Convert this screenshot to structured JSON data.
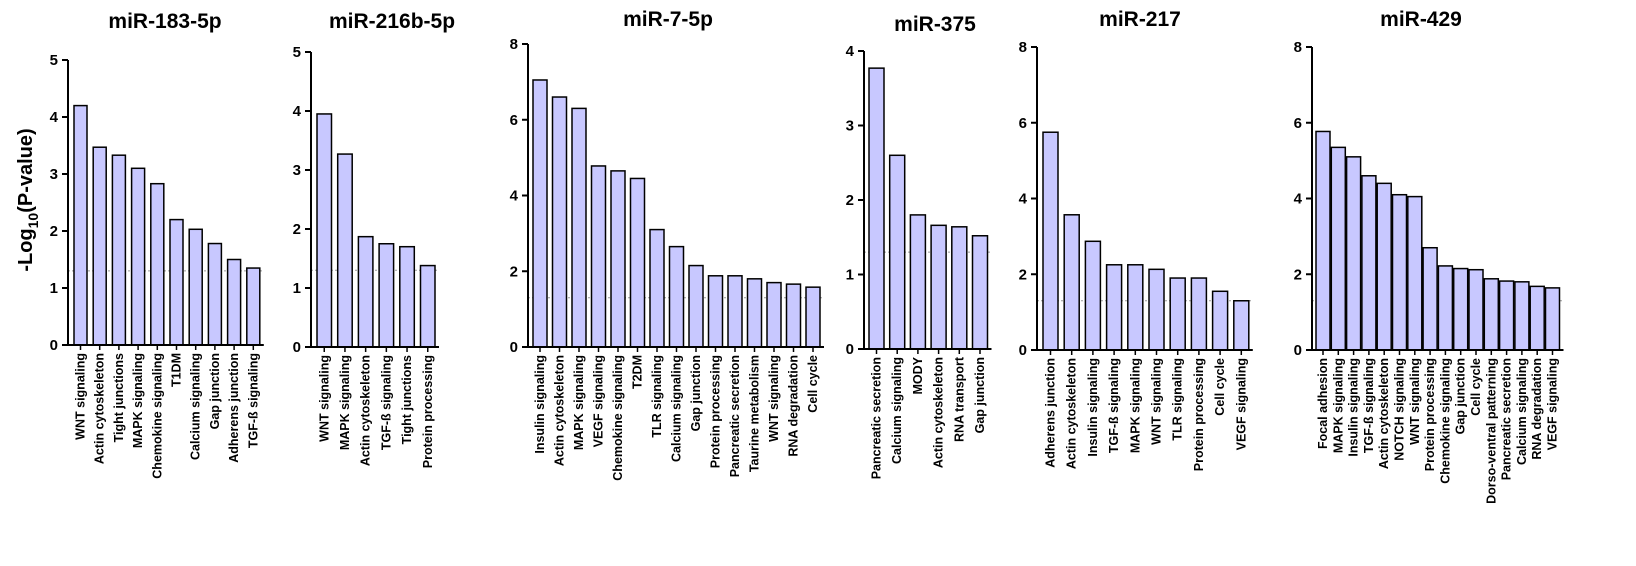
{
  "figure": {
    "ylabel_main": "-Log",
    "ylabel_sub": "10",
    "ylabel_tail": "(P-value)"
  },
  "style": {
    "bar_fill": "#c8c8ff",
    "bar_stroke": "#000000",
    "threshold_color": "#9a9a9a"
  },
  "chart_data": [
    {
      "type": "bar",
      "title": "miR-183-5p",
      "categories": [
        "WNT signaling",
        "Actin cytoskeleton",
        "Tight junctions",
        "MAPK signaling",
        "Chemokine signaling",
        "T1DM",
        "Calcium signaling",
        "Gap junction",
        "Adherens junction",
        "TGF-ß signaling"
      ],
      "values": [
        4.2,
        3.47,
        3.33,
        3.1,
        2.83,
        2.2,
        2.03,
        1.78,
        1.5,
        1.35
      ],
      "ylim": [
        0,
        5
      ],
      "yticks": [
        0,
        1,
        2,
        3,
        4,
        5
      ],
      "threshold": 1.3
    },
    {
      "type": "bar",
      "title": "miR-216b-5p",
      "categories": [
        "WNT signaling",
        "MAPK signaling",
        "Actin cytoskeleton",
        "TGF-ß signaling",
        "Tight junctions",
        "Protein processing"
      ],
      "values": [
        3.95,
        3.27,
        1.87,
        1.75,
        1.7,
        1.38
      ],
      "ylim": [
        0,
        5
      ],
      "yticks": [
        0,
        1,
        2,
        3,
        4,
        5
      ],
      "threshold": 1.3
    },
    {
      "type": "bar",
      "title": "miR-7-5p",
      "categories": [
        "Insulin signaling",
        "Actin cytoskeleton",
        "MAPK signaling",
        "VEGF signaling",
        "Chemokine signaling",
        "T2DM",
        "TLR signaling",
        "Calcium signaling",
        "Gap junction",
        "Protein processing",
        "Pancreatic secretion",
        "Taurine metabolism",
        "WNT signaling",
        "RNA degradation",
        "Cell cycle"
      ],
      "values": [
        7.05,
        6.6,
        6.3,
        4.78,
        4.65,
        4.45,
        3.1,
        2.65,
        2.15,
        1.88,
        1.88,
        1.8,
        1.7,
        1.66,
        1.58
      ],
      "ylim": [
        0,
        8
      ],
      "yticks": [
        0,
        2,
        4,
        6,
        8
      ],
      "threshold": 1.3
    },
    {
      "type": "bar",
      "title": "miR-375",
      "categories": [
        "Pancreatic secretion",
        "Calcium signaling",
        "MODY",
        "Actin cytoskeleton",
        "RNA transport",
        "Gap junction"
      ],
      "values": [
        3.77,
        2.6,
        1.8,
        1.66,
        1.64,
        1.52
      ],
      "ylim": [
        0,
        4
      ],
      "yticks": [
        0,
        1,
        2,
        3,
        4
      ],
      "threshold": 1.3
    },
    {
      "type": "bar",
      "title": "miR-217",
      "categories": [
        "Adherens junction",
        "Actin cytoskeleton",
        "Insulin signaling",
        "TGF-ß signaling",
        "MAPK signaling",
        "WNT signaling",
        "TLR signaling",
        "Protein processing",
        "Cell cycle",
        "VEGF signaling"
      ],
      "values": [
        5.75,
        3.57,
        2.87,
        2.25,
        2.25,
        2.13,
        1.9,
        1.9,
        1.55,
        1.3
      ],
      "ylim": [
        0,
        8
      ],
      "yticks": [
        0,
        2,
        4,
        6,
        8
      ],
      "threshold": 1.3
    },
    {
      "type": "bar",
      "title": "miR-429",
      "categories": [
        "Focal adhesion",
        "MAPK signaling",
        "Insulin signaling",
        "TGF-ß signaling",
        "Actin cytoskeleton",
        "NOTCH signaling",
        "WNT signaling",
        "Protein processing",
        "Chemokine signaling",
        "Gap junction",
        "Cell cycle",
        "Dorso-ventral patterning",
        "Pancreatic secretion",
        "Calcium signaling",
        "RNA degradation",
        "VEGF signaling"
      ],
      "values": [
        5.77,
        5.35,
        5.1,
        4.6,
        4.4,
        4.1,
        4.05,
        2.7,
        2.22,
        2.15,
        2.12,
        1.88,
        1.82,
        1.8,
        1.68,
        1.64
      ],
      "ylim": [
        0,
        8
      ],
      "yticks": [
        0,
        2,
        4,
        6,
        8
      ],
      "threshold": 1.3
    }
  ]
}
